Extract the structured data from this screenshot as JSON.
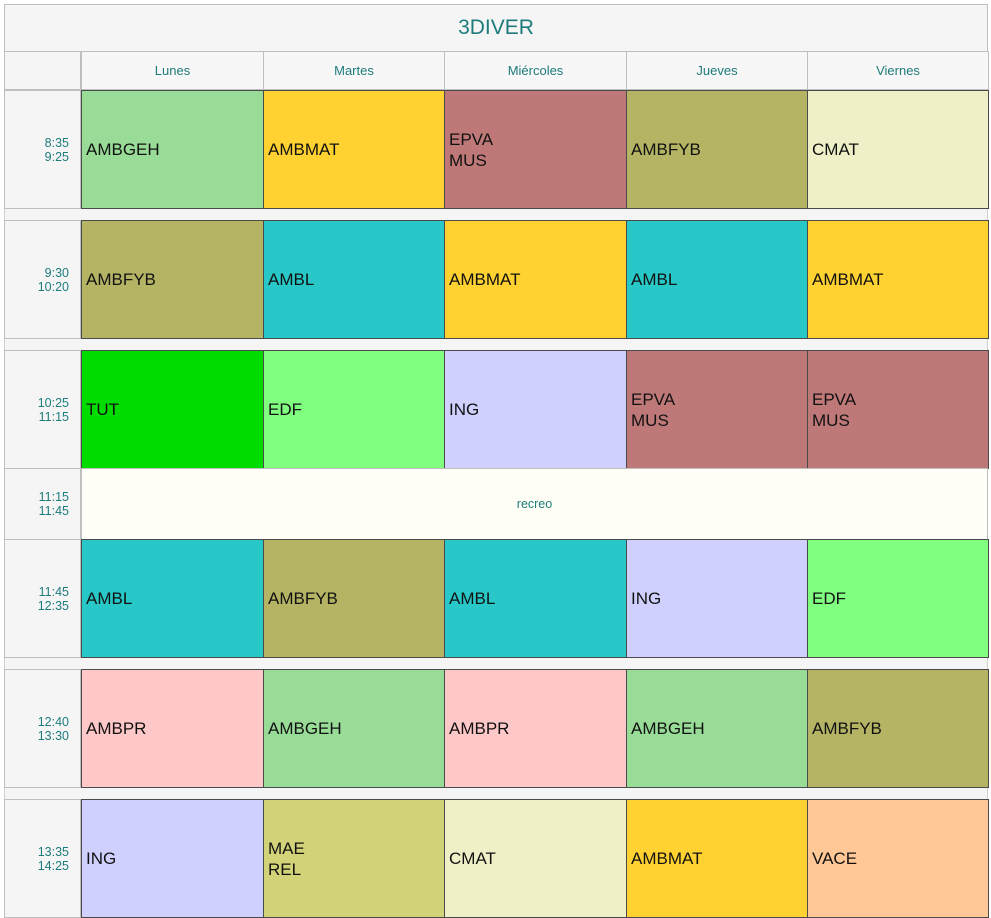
{
  "title": "3DIVER",
  "days": [
    "Lunes",
    "Martes",
    "Miércoles",
    "Jueves",
    "Viernes"
  ],
  "periods": [
    {
      "start": "8:35",
      "end": "9:25",
      "cells": [
        [
          "AMBGEH"
        ],
        [
          "AMBMAT"
        ],
        [
          "EPVA",
          "MUS"
        ],
        [
          "AMBFYB"
        ],
        [
          "CMAT"
        ]
      ]
    },
    {
      "start": "9:30",
      "end": "10:20",
      "cells": [
        [
          "AMBFYB"
        ],
        [
          "AMBL"
        ],
        [
          "AMBMAT"
        ],
        [
          "AMBL"
        ],
        [
          "AMBMAT"
        ]
      ]
    },
    {
      "start": "10:25",
      "end": "11:15",
      "cells": [
        [
          "TUT"
        ],
        [
          "EDF"
        ],
        [
          "ING"
        ],
        [
          "EPVA",
          "MUS"
        ],
        [
          "EPVA",
          "MUS"
        ]
      ]
    },
    {
      "start": "11:15",
      "end": "11:45",
      "break_label": "recreo"
    },
    {
      "start": "11:45",
      "end": "12:35",
      "cells": [
        [
          "AMBL"
        ],
        [
          "AMBFYB"
        ],
        [
          "AMBL"
        ],
        [
          "ING"
        ],
        [
          "EDF"
        ]
      ]
    },
    {
      "start": "12:40",
      "end": "13:30",
      "cells": [
        [
          "AMBPR"
        ],
        [
          "AMBGEH"
        ],
        [
          "AMBPR"
        ],
        [
          "AMBGEH"
        ],
        [
          "AMBFYB"
        ]
      ]
    },
    {
      "start": "13:35",
      "end": "14:25",
      "cells": [
        [
          "ING"
        ],
        [
          "MAE",
          "REL"
        ],
        [
          "CMAT"
        ],
        [
          "AMBMAT"
        ],
        [
          "VACE"
        ]
      ]
    }
  ],
  "subject_colors": {
    "AMBGEH": "#98dc98",
    "AMBMAT": "#ffd232",
    "EPVA": "#bf7878",
    "AMBFYB": "#b4b464",
    "CMAT": "#f0f0c8",
    "AMBL": "#28c8c8",
    "TUT": "#00dc00",
    "EDF": "#80ff80",
    "ING": "#d0d0ff",
    "AMBPR": "#ffc8c8",
    "MAE": "#d2d278",
    "VACE": "#ffc896"
  },
  "break_color": "#fefef6"
}
